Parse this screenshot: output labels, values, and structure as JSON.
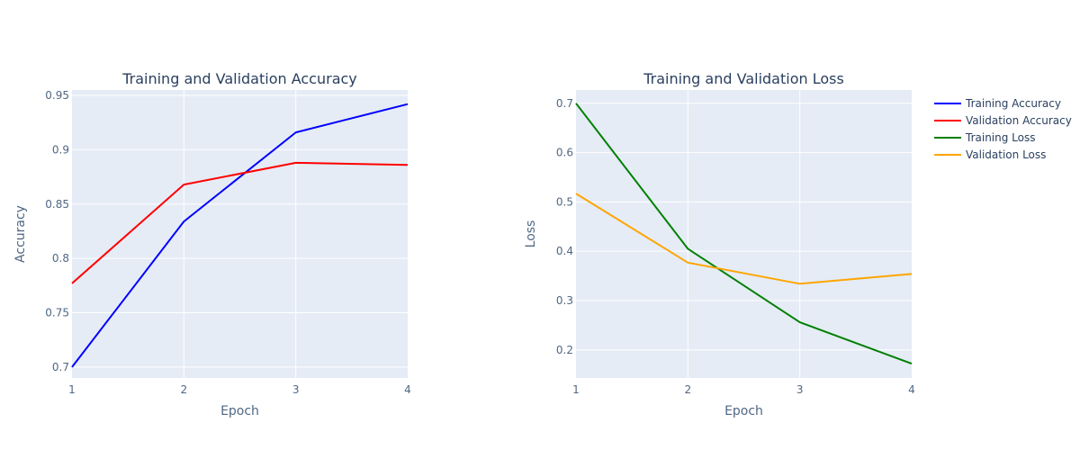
{
  "chart_data": [
    {
      "type": "line",
      "title": "Training and Validation Accuracy",
      "xlabel": "Epoch",
      "ylabel": "Accuracy",
      "x": [
        1,
        2,
        3,
        4
      ],
      "xlim": [
        1,
        4
      ],
      "ylim": [
        0.69,
        0.955
      ],
      "xticks": [
        1,
        2,
        3,
        4
      ],
      "xtick_labels": [
        "1",
        "2",
        "3",
        "4"
      ],
      "yticks": [
        0.7,
        0.75,
        0.8,
        0.85,
        0.9,
        0.95
      ],
      "ytick_labels": [
        "0.7",
        "0.75",
        "0.8",
        "0.85",
        "0.9",
        "0.95"
      ],
      "grid": true,
      "series": [
        {
          "name": "Training Accuracy",
          "color": "#0000ff",
          "values": [
            0.7,
            0.834,
            0.916,
            0.942
          ]
        },
        {
          "name": "Validation Accuracy",
          "color": "#ff0000",
          "values": [
            0.777,
            0.868,
            0.888,
            0.886
          ]
        }
      ]
    },
    {
      "type": "line",
      "title": "Training and Validation Loss",
      "xlabel": "Epoch",
      "ylabel": "Loss",
      "x": [
        1,
        2,
        3,
        4
      ],
      "xlim": [
        1,
        4
      ],
      "ylim": [
        0.143,
        0.727
      ],
      "xticks": [
        1,
        2,
        3,
        4
      ],
      "xtick_labels": [
        "1",
        "2",
        "3",
        "4"
      ],
      "yticks": [
        0.2,
        0.3,
        0.4,
        0.5,
        0.6,
        0.7
      ],
      "ytick_labels": [
        "0.2",
        "0.3",
        "0.4",
        "0.5",
        "0.6",
        "0.7"
      ],
      "grid": true,
      "series": [
        {
          "name": "Training Loss",
          "color": "#008000",
          "values": [
            0.7,
            0.405,
            0.256,
            0.172
          ]
        },
        {
          "name": "Validation Loss",
          "color": "#ffa500",
          "values": [
            0.517,
            0.377,
            0.334,
            0.354
          ]
        }
      ]
    }
  ],
  "legend": {
    "placement": "right",
    "items": [
      {
        "label": "Training Accuracy",
        "color": "#0000ff"
      },
      {
        "label": "Validation Accuracy",
        "color": "#ff0000"
      },
      {
        "label": "Training Loss",
        "color": "#008000"
      },
      {
        "label": "Validation Loss",
        "color": "#ffa500"
      }
    ]
  },
  "theme": {
    "plot_background": "#e5ecf6",
    "grid_color": "#ffffff",
    "title_color": "#2a3f5f",
    "axis_text_color": "#506784"
  }
}
